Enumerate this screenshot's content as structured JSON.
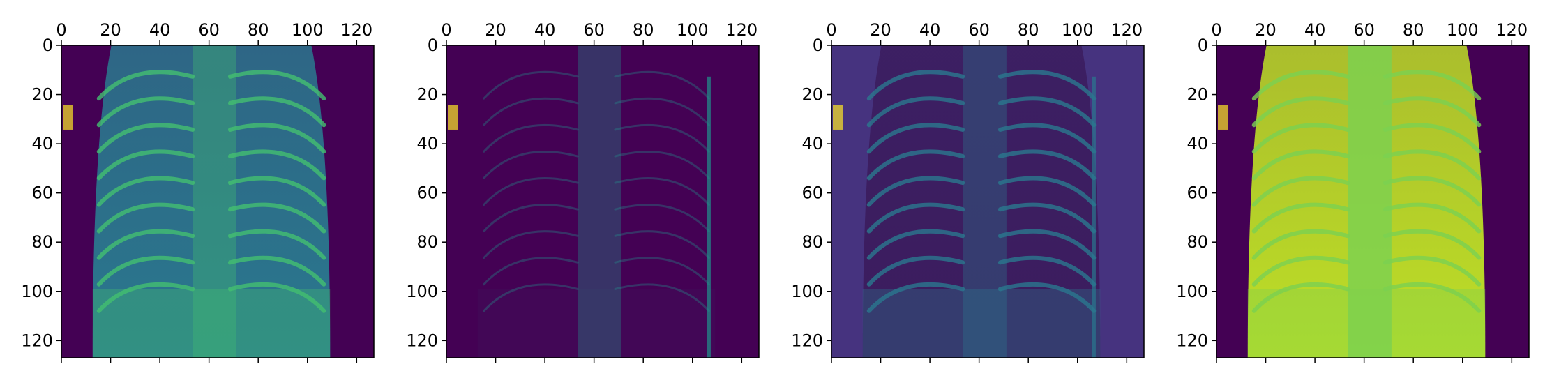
{
  "figure": {
    "background": "#ffffff",
    "axes_color": "#000000"
  },
  "chart_data": [
    {
      "type": "heatmap",
      "colormap": "viridis",
      "xlim": [
        0,
        127
      ],
      "ylim": [
        0,
        127
      ],
      "y_inverted": true,
      "x_axis_position": "top",
      "xticks": [
        0,
        20,
        40,
        60,
        80,
        100,
        120
      ],
      "yticks": [
        0,
        20,
        40,
        60,
        80,
        100,
        120
      ],
      "background_value": "#440154",
      "content": "chest X-ray feature map",
      "rib_intensity": "#43bf71",
      "body_intensity": "#2a788e"
    },
    {
      "type": "heatmap",
      "colormap": "viridis",
      "xlim": [
        0,
        127
      ],
      "ylim": [
        0,
        127
      ],
      "y_inverted": true,
      "x_axis_position": "top",
      "xticks": [
        0,
        20,
        40,
        60,
        80,
        100,
        120
      ],
      "yticks": [
        0,
        20,
        40,
        60,
        80,
        100,
        120
      ],
      "background_value": "#440154",
      "content": "chest X-ray feature map (sparse edges)",
      "rib_intensity": "#21918c",
      "body_intensity": "#440154"
    },
    {
      "type": "heatmap",
      "colormap": "viridis",
      "xlim": [
        0,
        127
      ],
      "ylim": [
        0,
        127
      ],
      "y_inverted": true,
      "x_axis_position": "top",
      "xticks": [
        0,
        20,
        40,
        60,
        80,
        100,
        120
      ],
      "yticks": [
        0,
        20,
        40,
        60,
        80,
        100,
        120
      ],
      "background_value": "#46337f",
      "content": "chest X-ray feature map (rib edges)",
      "rib_intensity": "#2a788e",
      "body_intensity": "#3b1c5e"
    },
    {
      "type": "heatmap",
      "colormap": "viridis",
      "xlim": [
        0,
        127
      ],
      "ylim": [
        0,
        127
      ],
      "y_inverted": true,
      "x_axis_position": "top",
      "xticks": [
        0,
        20,
        40,
        60,
        80,
        100,
        120
      ],
      "yticks": [
        0,
        20,
        40,
        60,
        80,
        100,
        120
      ],
      "background_value": "#440154",
      "content": "chest X-ray feature map (smoothed)",
      "rib_intensity": "#7ad151",
      "body_intensity": "#bddf26"
    }
  ]
}
